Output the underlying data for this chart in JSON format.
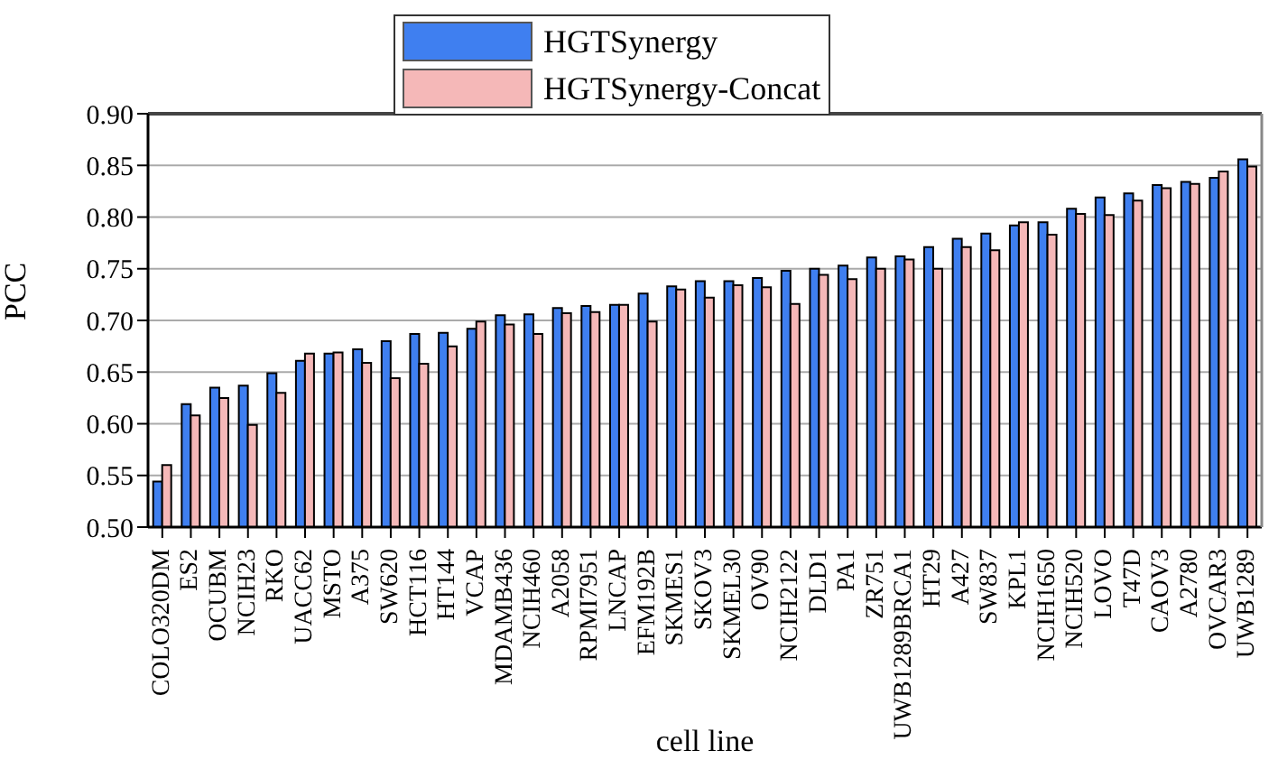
{
  "chart_data": {
    "type": "bar",
    "xlabel": "cell line",
    "ylabel": "PCC",
    "categories": [
      "COLO320DM",
      "ES2",
      "OCUBM",
      "NCIH23",
      "RKO",
      "UACC62",
      "MSTO",
      "A375",
      "SW620",
      "HCT116",
      "HT144",
      "VCAP",
      "MDAMB436",
      "NCIH460",
      "A2058",
      "RPMI7951",
      "LNCAP",
      "EFM192B",
      "SKMES1",
      "SKOV3",
      "SKMEL30",
      "OV90",
      "NCIH2122",
      "DLD1",
      "PA1",
      "ZR751",
      "UWB1289BRCA1",
      "HT29",
      "A427",
      "SW837",
      "KPL1",
      "NCIH1650",
      "NCIH520",
      "LOVO",
      "T47D",
      "CAOV3",
      "A2780",
      "OVCAR3",
      "UWB1289"
    ],
    "series": [
      {
        "name": "HGTSynergy",
        "color": "#3f7ff0",
        "values": [
          0.544,
          0.619,
          0.635,
          0.637,
          0.649,
          0.661,
          0.668,
          0.672,
          0.68,
          0.687,
          0.688,
          0.692,
          0.705,
          0.706,
          0.712,
          0.714,
          0.715,
          0.726,
          0.733,
          0.738,
          0.738,
          0.741,
          0.748,
          0.75,
          0.753,
          0.761,
          0.762,
          0.771,
          0.779,
          0.784,
          0.792,
          0.795,
          0.808,
          0.819,
          0.823,
          0.831,
          0.834,
          0.838,
          0.856
        ]
      },
      {
        "name": "HGTSynergy-Concat",
        "color": "#f5b8b8",
        "values": [
          0.56,
          0.608,
          0.625,
          0.599,
          0.63,
          0.668,
          0.669,
          0.659,
          0.644,
          0.658,
          0.675,
          0.699,
          0.696,
          0.687,
          0.707,
          0.708,
          0.715,
          0.699,
          0.73,
          0.722,
          0.734,
          0.732,
          0.716,
          0.744,
          0.74,
          0.75,
          0.759,
          0.75,
          0.771,
          0.768,
          0.795,
          0.783,
          0.803,
          0.802,
          0.816,
          0.828,
          0.832,
          0.844,
          0.849
        ]
      }
    ],
    "ylim": [
      0.5,
      0.9
    ],
    "yticks": [
      {
        "value": 0.5,
        "label": "0.50"
      },
      {
        "value": 0.55,
        "label": "0.55"
      },
      {
        "value": 0.6,
        "label": "0.60"
      },
      {
        "value": 0.65,
        "label": "0.65"
      },
      {
        "value": 0.7,
        "label": "0.70"
      },
      {
        "value": 0.75,
        "label": "0.75"
      },
      {
        "value": 0.8,
        "label": "0.80"
      },
      {
        "value": 0.85,
        "label": "0.85"
      },
      {
        "value": 0.9,
        "label": "0.90"
      }
    ],
    "grid": "y",
    "legend": "top"
  }
}
